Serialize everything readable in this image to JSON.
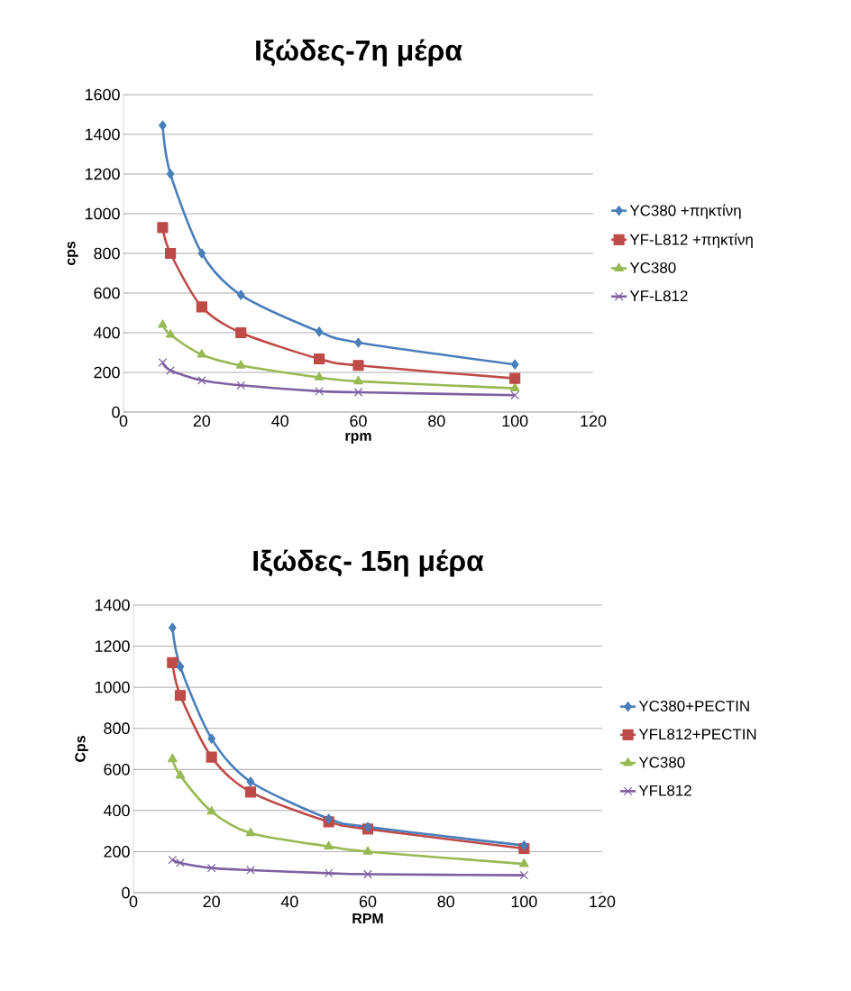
{
  "chart_data": [
    {
      "type": "line",
      "title": "Ιξώδες-7η μέρα",
      "xlabel": "rpm",
      "ylabel": "cps",
      "x": [
        10,
        12,
        20,
        30,
        50,
        60,
        100
      ],
      "series": [
        {
          "name": "YC380 +πηκτίνη",
          "color": "#4a7ebb",
          "marker": "diamond",
          "values": [
            1445,
            1200,
            800,
            590,
            405,
            350,
            240
          ]
        },
        {
          "name": "YF-L812 +πηκτίνη",
          "color": "#be4b48",
          "marker": "square",
          "values": [
            930,
            800,
            530,
            400,
            268,
            235,
            170
          ]
        },
        {
          "name": "YC380",
          "color": "#98b954",
          "marker": "triangle",
          "values": [
            440,
            390,
            290,
            235,
            175,
            155,
            120
          ]
        },
        {
          "name": "YF-L812",
          "color": "#7d60a0",
          "marker": "cross",
          "values": [
            250,
            210,
            160,
            135,
            105,
            100,
            85
          ]
        }
      ],
      "xlim": [
        0,
        120
      ],
      "xticks": [
        0,
        20,
        40,
        60,
        80,
        100,
        120
      ],
      "ylim": [
        0,
        1600
      ],
      "yticks": [
        0,
        200,
        400,
        600,
        800,
        1000,
        1200,
        1400,
        1600
      ],
      "grid": "y",
      "legend": "right",
      "line_style": "solid"
    },
    {
      "type": "line",
      "title": "Ιξώδες- 15η μέρα",
      "xlabel": "RPM",
      "ylabel": "Cps",
      "x": [
        10,
        12,
        20,
        30,
        50,
        60,
        100
      ],
      "series": [
        {
          "name": "YC380+PECTIN",
          "color": "#4a7ebb",
          "marker": "diamond",
          "values": [
            1290,
            1100,
            750,
            540,
            360,
            320,
            230
          ]
        },
        {
          "name": "YFL812+PECTIN",
          "color": "#be4b48",
          "marker": "square",
          "values": [
            1120,
            960,
            660,
            490,
            345,
            310,
            215
          ]
        },
        {
          "name": "YC380",
          "color": "#98b954",
          "marker": "triangle",
          "values": [
            650,
            570,
            395,
            290,
            225,
            200,
            140
          ]
        },
        {
          "name": "YFL812",
          "color": "#7d60a0",
          "marker": "cross",
          "values": [
            160,
            145,
            120,
            110,
            95,
            90,
            85
          ]
        }
      ],
      "xlim": [
        0,
        120
      ],
      "xticks": [
        0,
        20,
        40,
        60,
        80,
        100,
        120
      ],
      "ylim": [
        0,
        1400
      ],
      "yticks": [
        0,
        200,
        400,
        600,
        800,
        1000,
        1200,
        1400
      ],
      "grid": "y",
      "legend": "right",
      "line_style": "solid"
    }
  ]
}
